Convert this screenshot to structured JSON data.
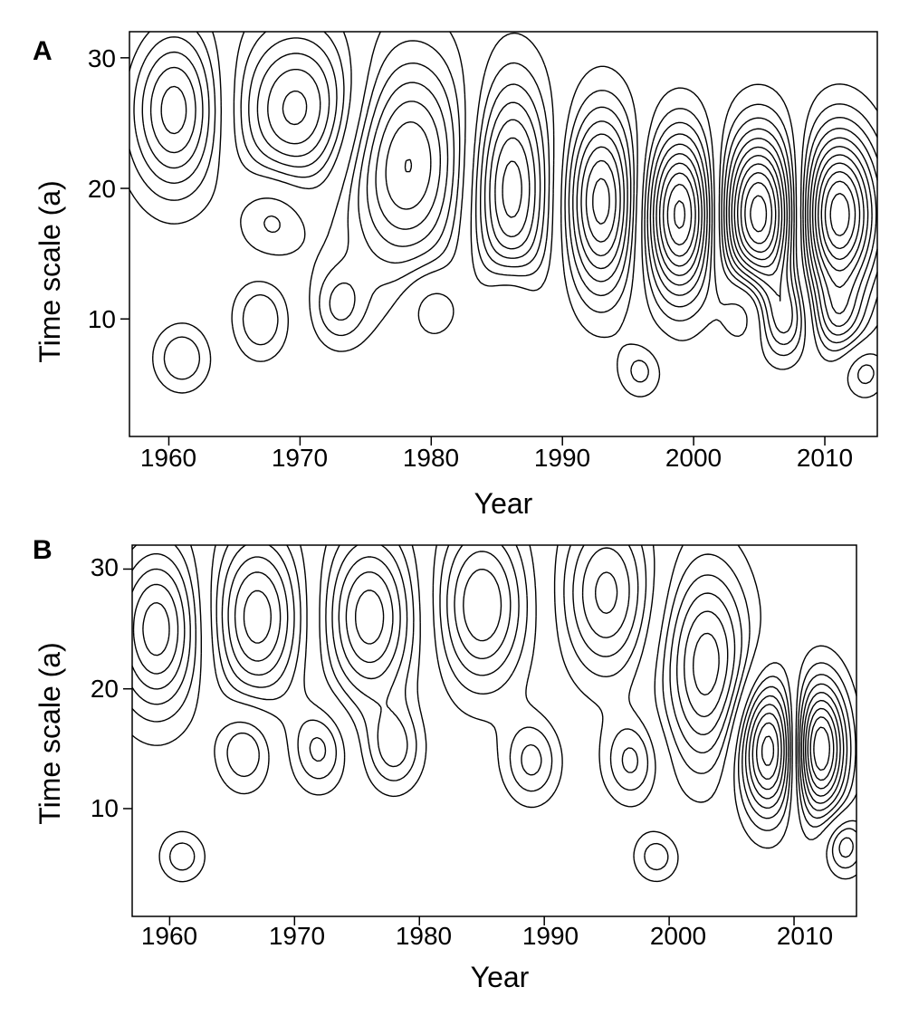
{
  "chart_data": [
    {
      "type": "heatmap",
      "panel": "A",
      "xlabel": "Year",
      "ylabel": "Time scale (a)",
      "x_ticks": [
        1960,
        1970,
        1980,
        1990,
        2000,
        2010
      ],
      "y_ticks": [
        10,
        20,
        30
      ],
      "xlim": [
        1957,
        2014
      ],
      "ylim": [
        1,
        32
      ],
      "centers": [
        {
          "x": 1960.5,
          "y": 26,
          "a": 1.0,
          "sx": 2.5,
          "sy": 4.5
        },
        {
          "x": 1970,
          "y": 26,
          "a": -1.0,
          "sx": 3.5,
          "sy": 4.5
        },
        {
          "x": 1978,
          "y": 22,
          "a": 1.1,
          "sx": 3.5,
          "sy": 6
        },
        {
          "x": 1986,
          "y": 20,
          "a": -1.2,
          "sx": 2.2,
          "sy": 6
        },
        {
          "x": 1993,
          "y": 19,
          "a": 1.3,
          "sx": 2.0,
          "sy": 5
        },
        {
          "x": 1999,
          "y": 18,
          "a": -1.6,
          "sx": 2.0,
          "sy": 4.5
        },
        {
          "x": 2005,
          "y": 18,
          "a": 1.8,
          "sx": 2.2,
          "sy": 4.5
        },
        {
          "x": 2011,
          "y": 18,
          "a": -1.8,
          "sx": 2.2,
          "sy": 4.5
        },
        {
          "x": 1968,
          "y": 18,
          "a": 0.45,
          "sx": 2.0,
          "sy": 2.5
        },
        {
          "x": 1961,
          "y": 7,
          "a": 0.45,
          "sx": 1.5,
          "sy": 1.8
        },
        {
          "x": 1967,
          "y": 10,
          "a": -0.45,
          "sx": 1.5,
          "sy": 2.2
        },
        {
          "x": 1973,
          "y": 11,
          "a": 0.45,
          "sx": 1.5,
          "sy": 2.2
        },
        {
          "x": 1980,
          "y": 11,
          "a": -0.4,
          "sx": 1.5,
          "sy": 2.0
        },
        {
          "x": 1986,
          "y": 12,
          "a": 0.4,
          "sx": 1.5,
          "sy": 2.0
        },
        {
          "x": 2004,
          "y": 11,
          "a": -0.6,
          "sx": 1.4,
          "sy": 2.2
        },
        {
          "x": 2007,
          "y": 10,
          "a": 0.6,
          "sx": 1.4,
          "sy": 2.2
        },
        {
          "x": 2011,
          "y": 10,
          "a": -0.5,
          "sx": 1.4,
          "sy": 2.0
        },
        {
          "x": 1996,
          "y": 6,
          "a": 0.35,
          "sx": 1.2,
          "sy": 1.5
        },
        {
          "x": 2013,
          "y": 6,
          "a": 0.4,
          "sx": 1.2,
          "sy": 1.5
        }
      ]
    },
    {
      "type": "heatmap",
      "panel": "B",
      "xlabel": "Year",
      "ylabel": "Time scale (a)",
      "x_ticks": [
        1960,
        1970,
        1980,
        1990,
        2000,
        2010
      ],
      "y_ticks": [
        10,
        20,
        30
      ],
      "xlim": [
        1957,
        2015
      ],
      "ylim": [
        1,
        32
      ],
      "centers": [
        {
          "x": 1959,
          "y": 25,
          "a": 1.0,
          "sx": 2.5,
          "sy": 5
        },
        {
          "x": 1967,
          "y": 26,
          "a": -1.0,
          "sx": 2.6,
          "sy": 5
        },
        {
          "x": 1976,
          "y": 26,
          "a": 1.0,
          "sx": 2.6,
          "sy": 5
        },
        {
          "x": 1985,
          "y": 27,
          "a": -0.9,
          "sx": 2.6,
          "sy": 5
        },
        {
          "x": 1995,
          "y": 28,
          "a": 0.8,
          "sx": 2.6,
          "sy": 5
        },
        {
          "x": 2003,
          "y": 22,
          "a": -1.0,
          "sx": 2.5,
          "sy": 6
        },
        {
          "x": 2008,
          "y": 15,
          "a": 1.4,
          "sx": 1.8,
          "sy": 4
        },
        {
          "x": 2012,
          "y": 15,
          "a": -1.6,
          "sx": 1.6,
          "sy": 4
        },
        {
          "x": 1966,
          "y": 15,
          "a": 0.5,
          "sx": 1.6,
          "sy": 2.5
        },
        {
          "x": 1972,
          "y": 15,
          "a": -0.5,
          "sx": 1.6,
          "sy": 2.5
        },
        {
          "x": 1978,
          "y": 15,
          "a": 0.5,
          "sx": 1.6,
          "sy": 2.5
        },
        {
          "x": 1989,
          "y": 14,
          "a": -0.5,
          "sx": 1.6,
          "sy": 2.5
        },
        {
          "x": 1997,
          "y": 14,
          "a": 0.5,
          "sx": 1.6,
          "sy": 2.5
        },
        {
          "x": 1961,
          "y": 6,
          "a": -0.4,
          "sx": 1.3,
          "sy": 1.5
        },
        {
          "x": 1999,
          "y": 6,
          "a": 0.4,
          "sx": 1.3,
          "sy": 1.5
        },
        {
          "x": 2014,
          "y": 7,
          "a": 0.6,
          "sx": 1.2,
          "sy": 1.8
        }
      ]
    }
  ],
  "panels": [
    {
      "label": "A",
      "xlabel": "Year",
      "ylabel": "Time scale (a)",
      "x_tick_labels": [
        "1960",
        "1970",
        "1980",
        "1990",
        "2000",
        "2010"
      ],
      "y_tick_labels": [
        "10",
        "20",
        "30"
      ]
    },
    {
      "label": "B",
      "xlabel": "Year",
      "ylabel": "Time scale (a)",
      "x_tick_labels": [
        "1960",
        "1970",
        "1980",
        "1990",
        "2000",
        "2010"
      ],
      "y_tick_labels": [
        "10",
        "20",
        "30"
      ]
    }
  ]
}
